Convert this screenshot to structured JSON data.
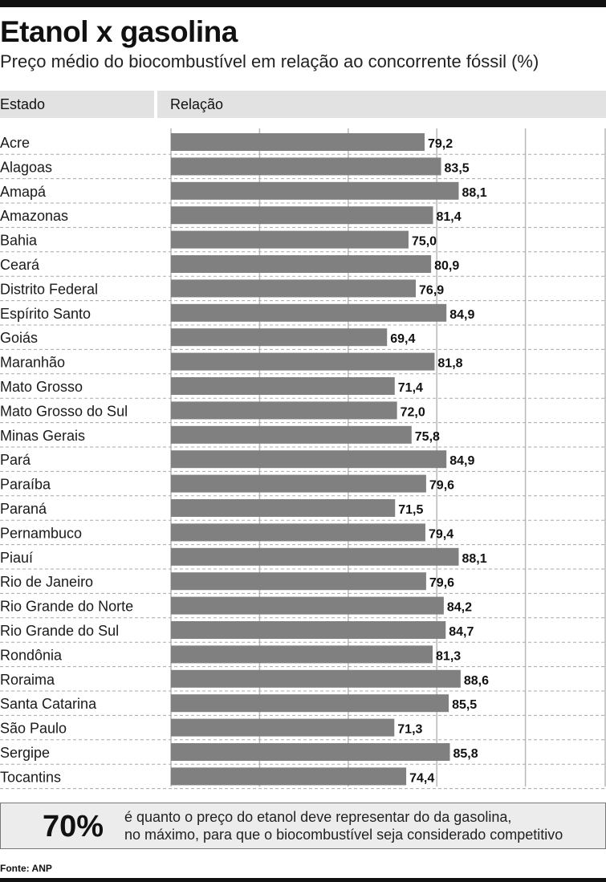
{
  "header": {
    "title": "Etanol x gasolina",
    "subtitle": "Preço médio do biocombustível em relação ao concorrente fóssil (%)"
  },
  "table_header": {
    "state": "Estado",
    "relation": "Relação"
  },
  "chart_data": {
    "type": "bar",
    "orientation": "horizontal",
    "categories": [
      "Acre",
      "Alagoas",
      "Amapá",
      "Amazonas",
      "Bahia",
      "Ceará",
      "Distrito Federal",
      "Espírito Santo",
      "Goiás",
      "Maranhão",
      "Mato Grosso",
      "Mato Grosso do Sul",
      "Minas Gerais",
      "Pará",
      "Paraíba",
      "Paraná",
      "Pernambuco",
      "Piauí",
      "Rio de Janeiro",
      "Rio Grande do Norte",
      "Rio Grande do Sul",
      "Rondônia",
      "Roraima",
      "Santa Catarina",
      "São Paulo",
      "Sergipe",
      "Tocantins"
    ],
    "values": [
      79.2,
      83.5,
      88.1,
      81.4,
      75.0,
      80.9,
      76.9,
      84.9,
      69.4,
      81.8,
      71.4,
      72.0,
      75.8,
      84.9,
      79.6,
      71.5,
      79.4,
      88.1,
      79.6,
      84.2,
      84.7,
      81.3,
      88.6,
      85.5,
      71.3,
      85.8,
      74.4
    ],
    "value_labels": [
      "79,2",
      "83,5",
      "88,1",
      "81,4",
      "75,0",
      "80,9",
      "76,9",
      "84,9",
      "69,4",
      "81,8",
      "71,4",
      "72,0",
      "75,8",
      "84,9",
      "79,6",
      "71,5",
      "79,4",
      "88,1",
      "79,6",
      "84,2",
      "84,7",
      "81,3",
      "88,6",
      "85,5",
      "71,3",
      "85,8",
      "74,4"
    ],
    "xlim": [
      0,
      100
    ],
    "grid": true,
    "bar_color": "#808080"
  },
  "note": {
    "value": "70%",
    "line1": "é quanto o preço do etanol deve representar do da gasolina,",
    "line2": "no máximo, para que o biocombustível seja considerado competitivo"
  },
  "source": "Fonte: ANP"
}
